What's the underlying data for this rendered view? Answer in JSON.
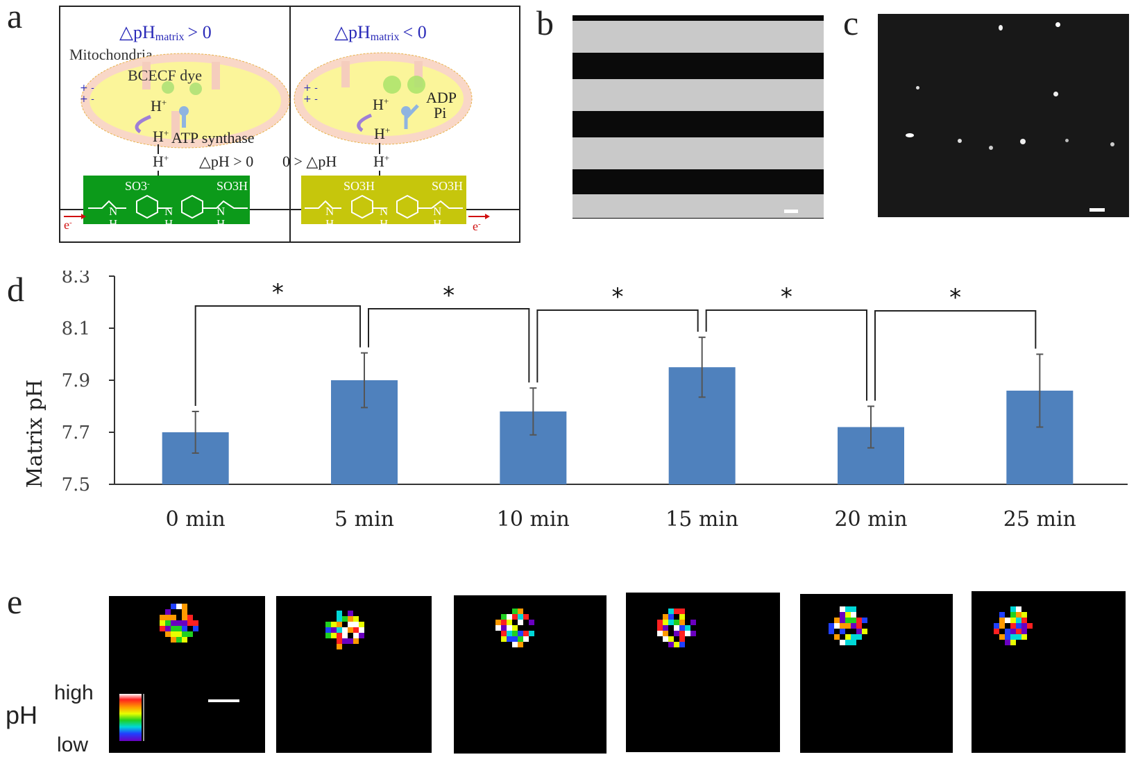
{
  "panels": {
    "a": "a",
    "b": "b",
    "c": "c",
    "d": "d",
    "e": "e"
  },
  "diagram": {
    "left": {
      "title_prefix": "△pH",
      "title_sub": "matrix",
      "title_suffix": "> 0",
      "mitochondria": "Mitochondria",
      "dye": "BCECF dye",
      "h_plus": "H",
      "atp_synthase": "ATP synthase",
      "delta": "△pH > 0",
      "so3_minus": "SO3",
      "so3h": "SO3H",
      "electron": "e",
      "nh": "N",
      "h": "H"
    },
    "right": {
      "title_prefix": "△pH",
      "title_sub": "matrix",
      "title_suffix": "< 0",
      "adp": "ADP",
      "pi": "Pi",
      "delta": "0 > △pH",
      "so3h": "SO3H",
      "electron": "e"
    },
    "colors": {
      "title_blue": "#2a2ab8",
      "green_polymer": "#0c9a1a",
      "yellow_polymer": "#c6c60c",
      "mito_fill": "#fbf59a",
      "mito_outer": "#f9d7c7",
      "electron_red": "#d01010"
    }
  },
  "chart_data": {
    "type": "bar",
    "categories": [
      "0 min",
      "5 min",
      "10 min",
      "15 min",
      "20 min",
      "25 min"
    ],
    "values": [
      7.7,
      7.9,
      7.78,
      7.95,
      7.72,
      7.86
    ],
    "errors": [
      0.08,
      0.105,
      0.09,
      0.115,
      0.08,
      0.14
    ],
    "ylabel": "Matrix pH",
    "ylim": [
      7.5,
      8.3
    ],
    "yticks": [
      "7.5",
      "7.7",
      "7.9",
      "8.1",
      "8.3"
    ],
    "significance": [
      {
        "from": 0,
        "to": 1,
        "label": "*"
      },
      {
        "from": 1,
        "to": 2,
        "label": "*"
      },
      {
        "from": 2,
        "to": 3,
        "label": "*"
      },
      {
        "from": 3,
        "to": 4,
        "label": "*"
      },
      {
        "from": 4,
        "to": 5,
        "label": "*"
      }
    ],
    "bar_color": "#4f81bd",
    "grid": false
  },
  "colorbar": {
    "title": "pH",
    "high": "high",
    "low": "low"
  }
}
